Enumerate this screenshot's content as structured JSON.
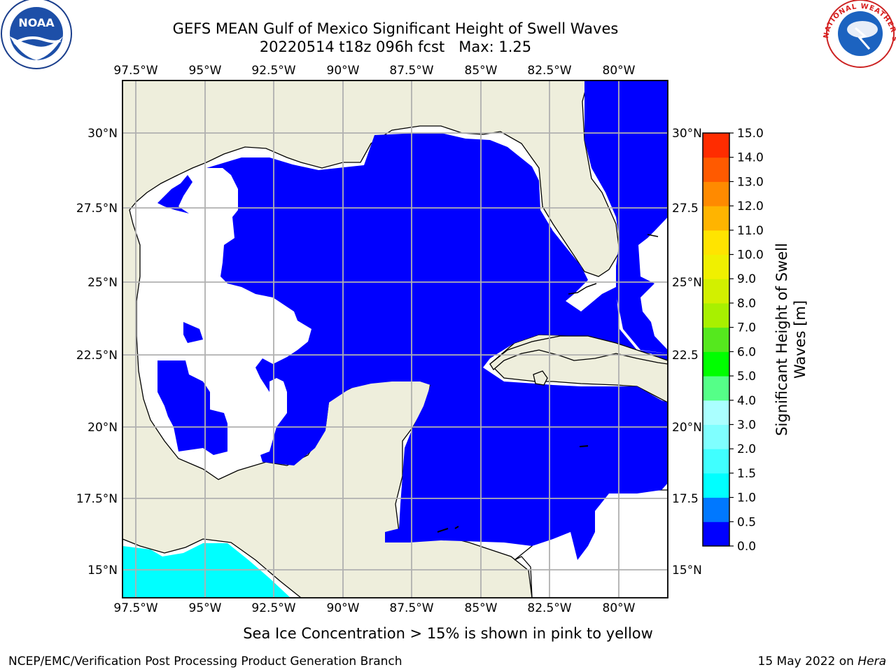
{
  "title_line1": "GEFS MEAN Gulf of Mexico Significant Height of Swell Waves",
  "title_line2": "20220514 t18z 096h fcst   Max: 1.25",
  "sea_ice_note": "Sea Ice Concentration > 15% is shown in pink to yellow",
  "footer_left": "NCEP/EMC/Verification Post Processing Product Generation Branch",
  "footer_date": "15 May 2022 on ",
  "footer_host": "Hera",
  "colorbar": {
    "label_line1": "Significant Height of Swell",
    "label_line2": "Waves [m]",
    "levels": [
      "0.0",
      "0.5",
      "1.0",
      "1.5",
      "2.0",
      "3.0",
      "4.0",
      "5.0",
      "6.0",
      "7.0",
      "8.0",
      "9.0",
      "10.0",
      "11.0",
      "12.0",
      "13.0",
      "14.0",
      "15.0"
    ],
    "colors": [
      "#0000ff",
      "#0078ff",
      "#00ffff",
      "#40ffff",
      "#7fffff",
      "#aaffff",
      "#55ff88",
      "#00ff00",
      "#55e81e",
      "#a8f000",
      "#d2f000",
      "#f0f000",
      "#ffe400",
      "#ffb400",
      "#ff8a00",
      "#ff5a00",
      "#ff2c00",
      "#ff0000"
    ]
  },
  "map": {
    "lon_ticks": [
      "97.5°W",
      "95°W",
      "92.5°W",
      "90°W",
      "87.5°W",
      "85°W",
      "82.5°W",
      "80°W"
    ],
    "lat_ticks": [
      "30°N",
      "27.5°N",
      "25°N",
      "22.5°N",
      "20°N",
      "17.5°N",
      "15°N"
    ],
    "lat_ticks_right": [
      "30°N",
      "27.5",
      "25°N",
      "22.5",
      "20°N",
      "17.5",
      "15°N"
    ],
    "extent": {
      "lon_min": -98,
      "lon_max": -78.25,
      "lat_min": 14.0,
      "lat_max": 31.75
    },
    "land_color": "#eeeedc",
    "ocean_white_color": "#ffffff",
    "low_swell_color": "#0000ff",
    "cyan_color": "#00ffff",
    "grid_color": "#b0b0b0"
  },
  "logos": {
    "noaa_text": "NOAA",
    "nws_text": "NATIONAL WEATHER SERVICE"
  }
}
